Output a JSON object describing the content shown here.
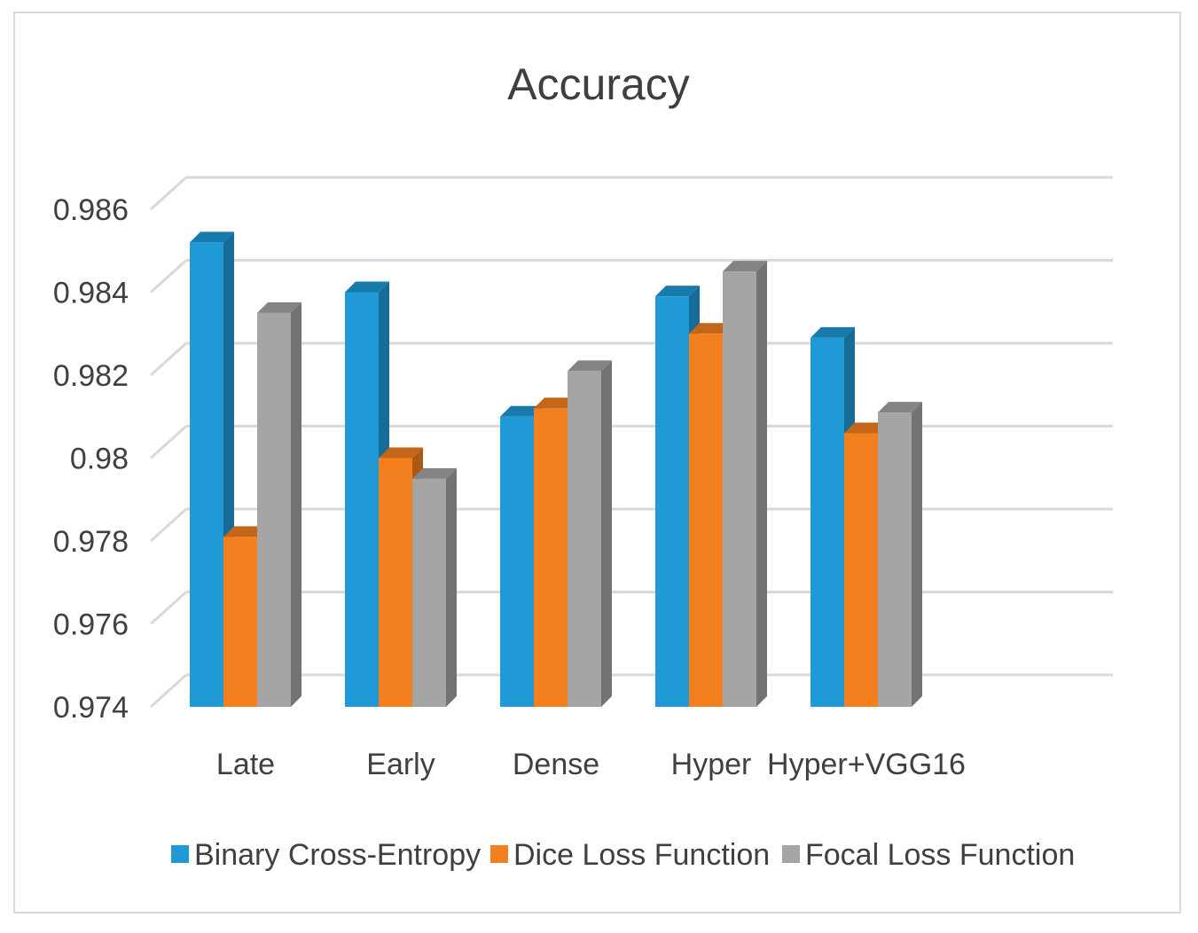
{
  "chart_data": {
    "type": "bar",
    "title": "Accuracy",
    "xlabel": "",
    "ylabel": "",
    "ylim": [
      0.974,
      0.986
    ],
    "yticks": [
      "0.974",
      "0.976",
      "0.978",
      "0.98",
      "0.982",
      "0.984",
      "0.986"
    ],
    "categories": [
      "Late",
      "Early",
      "Dense",
      "Hyper",
      "Hyper+VGG16"
    ],
    "series": [
      {
        "name": "Binary Cross-Entropy",
        "color": "#1f9ad6",
        "values": [
          0.9852,
          0.984,
          0.981,
          0.9839,
          0.9829
        ]
      },
      {
        "name": "Dice Loss Function",
        "color": "#f47f1f",
        "values": [
          0.9781,
          0.98,
          0.9812,
          0.983,
          0.9806
        ]
      },
      {
        "name": "Focal Loss Function",
        "color": "#a5a5a5",
        "values": [
          0.9835,
          0.9795,
          0.9821,
          0.9845,
          0.9811
        ]
      }
    ],
    "legend_position": "bottom",
    "grid": true
  }
}
